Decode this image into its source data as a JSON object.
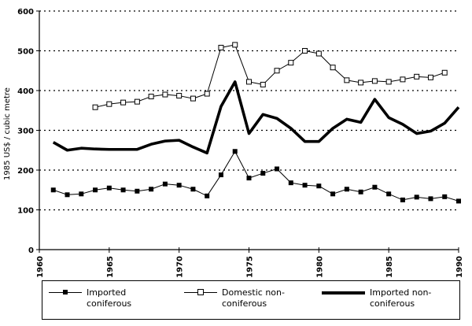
{
  "chart_data": {
    "type": "line",
    "title": "",
    "xlabel": "",
    "ylabel": "1985 US$ / cubic metre",
    "xlim": [
      1960,
      1990
    ],
    "ylim": [
      0,
      600
    ],
    "xticks": [
      "1960",
      "1965",
      "1970",
      "1975",
      "1980",
      "1985",
      "1990"
    ],
    "yticks": [
      "0",
      "100",
      "200",
      "300",
      "400",
      "500",
      "600"
    ],
    "grid": "horizontal dotted",
    "legend_position": "bottom",
    "series": [
      {
        "name": "Imported coniferous",
        "marker": "filled-square",
        "line": "thin",
        "color": "#000000",
        "x": [
          1961,
          1962,
          1963,
          1964,
          1965,
          1966,
          1967,
          1968,
          1969,
          1970,
          1971,
          1972,
          1973,
          1974,
          1975,
          1976,
          1977,
          1978,
          1979,
          1980,
          1981,
          1982,
          1983,
          1984,
          1985,
          1986,
          1987,
          1988,
          1989,
          1990
        ],
        "y": [
          150,
          138,
          140,
          150,
          155,
          150,
          147,
          152,
          165,
          162,
          152,
          135,
          188,
          247,
          180,
          192,
          203,
          168,
          162,
          160,
          140,
          152,
          145,
          157,
          140,
          125,
          132,
          128,
          133,
          122
        ]
      },
      {
        "name": "Domestic non-coniferous",
        "marker": "open-square",
        "line": "thin",
        "color": "#000000",
        "x": [
          1964,
          1965,
          1966,
          1967,
          1968,
          1969,
          1970,
          1971,
          1972,
          1973,
          1974,
          1975,
          1976,
          1977,
          1978,
          1979,
          1980,
          1981,
          1982,
          1983,
          1984,
          1985,
          1986,
          1987,
          1988,
          1989
        ],
        "y": [
          358,
          366,
          370,
          372,
          385,
          390,
          387,
          380,
          392,
          508,
          515,
          422,
          415,
          450,
          470,
          500,
          493,
          458,
          426,
          420,
          424,
          422,
          428,
          435,
          433,
          445
        ]
      },
      {
        "name": "Imported non-coniferous",
        "marker": "none",
        "line": "thick",
        "color": "#000000",
        "x": [
          1961,
          1962,
          1963,
          1964,
          1965,
          1966,
          1967,
          1968,
          1969,
          1970,
          1971,
          1972,
          1973,
          1974,
          1975,
          1976,
          1977,
          1978,
          1979,
          1980,
          1981,
          1982,
          1983,
          1984,
          1985,
          1986,
          1987,
          1988,
          1989,
          1990
        ],
        "y": [
          270,
          250,
          255,
          253,
          252,
          252,
          252,
          265,
          273,
          275,
          258,
          243,
          360,
          422,
          292,
          340,
          330,
          305,
          272,
          272,
          305,
          328,
          320,
          378,
          332,
          315,
          292,
          298,
          318,
          358
        ]
      }
    ],
    "legend": {
      "items": [
        "Imported coniferous",
        "Domestic non-\nconiferous",
        "Imported non-\nconiferous"
      ]
    }
  }
}
